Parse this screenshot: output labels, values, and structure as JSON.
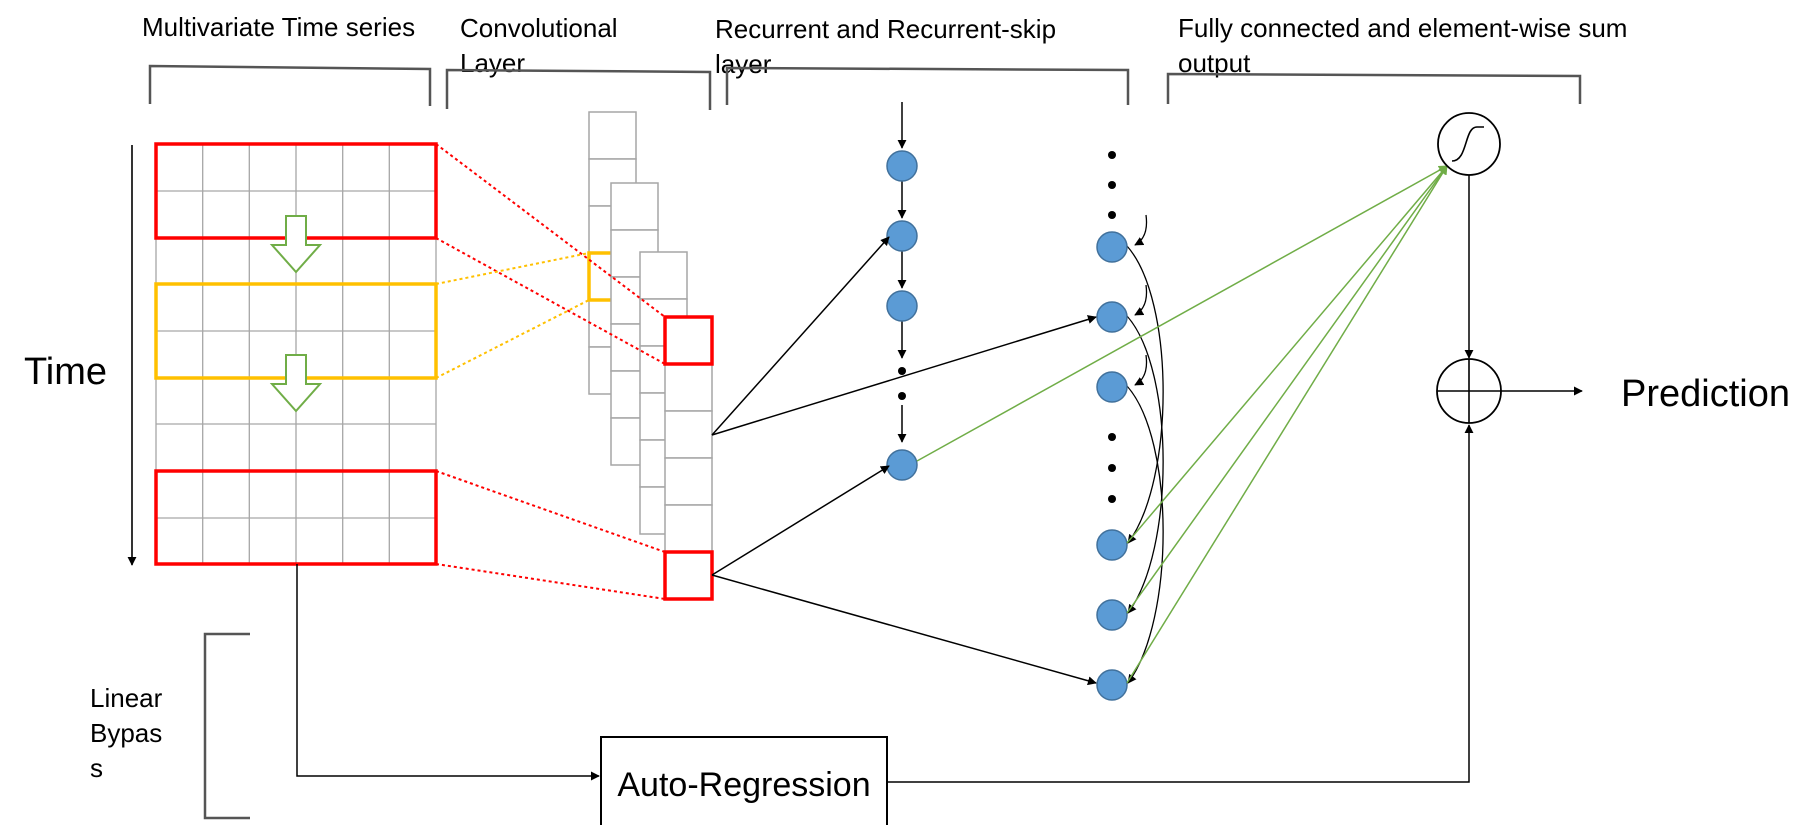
{
  "sections": {
    "input": "Multivariate Time series",
    "conv": [
      "Convolutional",
      "Layer"
    ],
    "recurrent": [
      "Recurrent and Recurrent-skip",
      "layer"
    ],
    "output": [
      "Fully connected and element-wise sum",
      "output"
    ]
  },
  "time_label": "Time",
  "linear_bypass": [
    "Linear",
    "Bypas",
    "s"
  ],
  "auto_regression": "Auto-Regression",
  "prediction": "Prediction",
  "colors": {
    "window_red": "#ff0000",
    "window_yellow": "#ffc000",
    "shift_arrow_green": "#70ad47",
    "node_fill": "#5b9bd5",
    "node_stroke": "#41719c",
    "grid_gray": "#a6a6a6",
    "fc_green": "#70ad47"
  }
}
